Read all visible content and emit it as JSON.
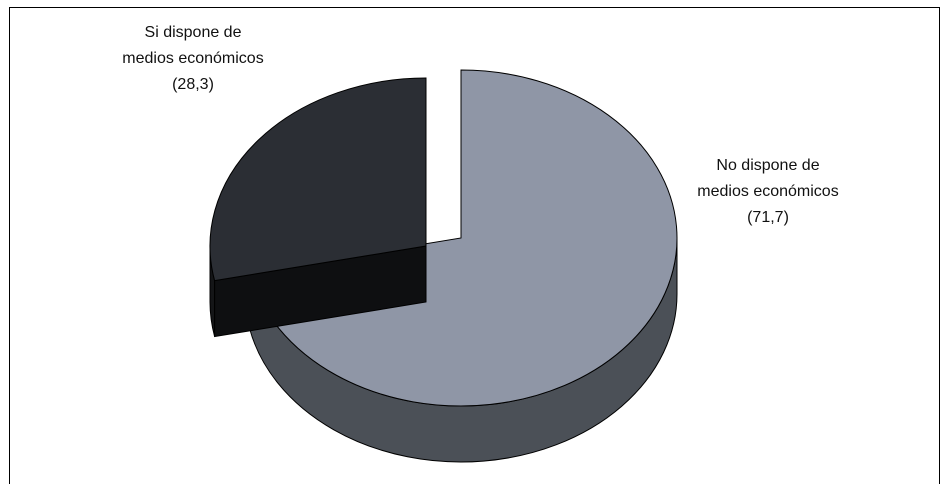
{
  "chart_data": {
    "type": "pie",
    "title": "",
    "slices": [
      {
        "label_lines": [
          "No dispone de",
          "medios económicos",
          "(71,7)"
        ],
        "value": 71.7,
        "color": "#8f96a6",
        "side_color": "#4b5057"
      },
      {
        "label_lines": [
          "Si dispone de",
          "medios económicos",
          "(28,3)"
        ],
        "value": 28.3,
        "color": "#2b2e34",
        "side_color": "#141517",
        "exploded": true
      }
    ],
    "style": "3d-exploded",
    "legend": "none"
  }
}
